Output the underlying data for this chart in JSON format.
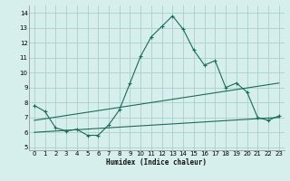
{
  "xlabel": "Humidex (Indice chaleur)",
  "x_ticks": [
    0,
    1,
    2,
    3,
    4,
    5,
    6,
    7,
    8,
    9,
    10,
    11,
    12,
    13,
    14,
    15,
    16,
    17,
    18,
    19,
    20,
    21,
    22,
    23
  ],
  "ylim": [
    4.8,
    14.5
  ],
  "xlim": [
    -0.5,
    23.5
  ],
  "yticks": [
    5,
    6,
    7,
    8,
    9,
    10,
    11,
    12,
    13,
    14
  ],
  "bg_color": "#d6efec",
  "grid_color": "#aacfcc",
  "line_color": "#1a6b5a",
  "curve1_x": [
    0,
    1,
    2,
    3,
    4,
    5,
    6,
    7,
    8,
    9,
    10,
    11,
    12,
    13,
    14,
    15,
    16,
    17,
    18,
    19,
    20,
    21,
    22,
    23
  ],
  "curve1_y": [
    7.8,
    7.4,
    6.3,
    6.1,
    6.2,
    5.8,
    5.8,
    6.5,
    7.5,
    9.3,
    11.1,
    12.4,
    13.1,
    13.8,
    12.9,
    11.5,
    10.5,
    10.8,
    9.0,
    9.3,
    8.7,
    7.0,
    6.8,
    7.1
  ],
  "curve2_x": [
    0,
    23
  ],
  "curve2_y": [
    6.8,
    9.3
  ],
  "curve3_x": [
    0,
    23
  ],
  "curve3_y": [
    6.0,
    7.0
  ]
}
